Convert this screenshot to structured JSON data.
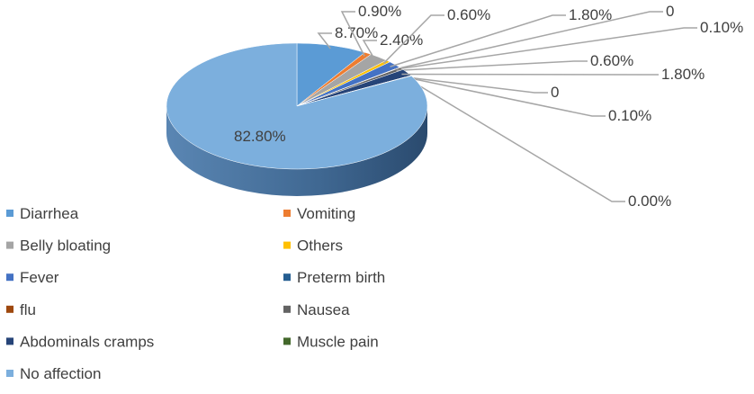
{
  "chart_data": {
    "type": "pie",
    "categories": [
      "Diarrhea",
      "Vomiting",
      "Belly bloating",
      "Others",
      "Fever",
      "Preterm birth",
      "flu",
      "Nausea",
      "Abdominals cramps",
      "Muscle pain",
      null,
      null,
      "No affection"
    ],
    "values": [
      8.7,
      0.9,
      2.4,
      0.6,
      1.8,
      0,
      0.1,
      0.6,
      1.8,
      0,
      0.1,
      0,
      82.8
    ],
    "value_labels": [
      "8.70%",
      "0.90%",
      "2.40%",
      "0.60%",
      "1.80%",
      "0",
      "0.10%",
      "0.60%",
      "1.80%",
      "0",
      "0.10%",
      "0.00%",
      "82.80%"
    ],
    "colors": [
      "#5b9bd5",
      "#ed7d31",
      "#a5a5a5",
      "#ffc000",
      "#4472c4",
      "#255e91",
      "#9e480e",
      "#636363",
      "#264478",
      "#43682b",
      "#698ed0",
      "#f1975a",
      "#7cafdd"
    ],
    "legend": "bottom-left"
  }
}
